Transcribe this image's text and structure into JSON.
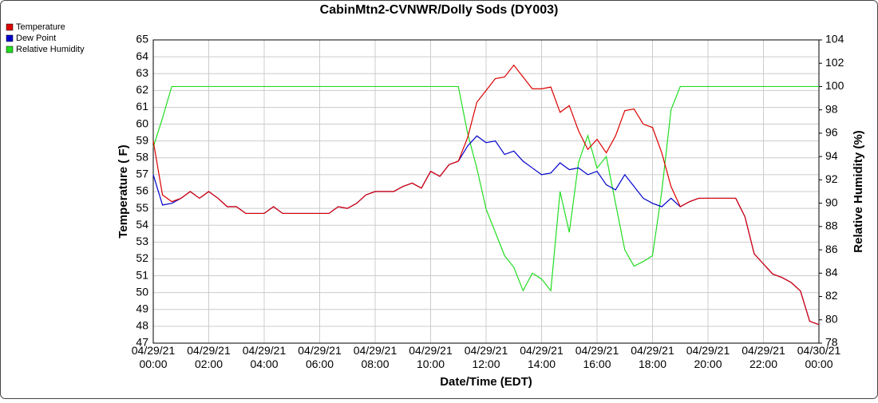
{
  "chart_data": {
    "type": "line",
    "title": "CabinMtn2-CVNWR/Dolly Sods (DY003)",
    "x_label": "Date/Time (EDT)",
    "y_label": "Temperature ( F)",
    "y2_label": "Relative Humidity (%)",
    "x": [
      "04/29/21 00:00",
      "04/29/21 00:20",
      "04/29/21 00:40",
      "04/29/21 01:00",
      "04/29/21 01:20",
      "04/29/21 01:40",
      "04/29/21 02:00",
      "04/29/21 02:20",
      "04/29/21 02:40",
      "04/29/21 03:00",
      "04/29/21 03:20",
      "04/29/21 03:40",
      "04/29/21 04:00",
      "04/29/21 04:20",
      "04/29/21 04:40",
      "04/29/21 05:00",
      "04/29/21 05:20",
      "04/29/21 05:40",
      "04/29/21 06:00",
      "04/29/21 06:20",
      "04/29/21 06:40",
      "04/29/21 07:00",
      "04/29/21 07:20",
      "04/29/21 07:40",
      "04/29/21 08:00",
      "04/29/21 08:20",
      "04/29/21 08:40",
      "04/29/21 09:00",
      "04/29/21 09:20",
      "04/29/21 09:40",
      "04/29/21 10:00",
      "04/29/21 10:20",
      "04/29/21 10:40",
      "04/29/21 11:00",
      "04/29/21 11:20",
      "04/29/21 11:40",
      "04/29/21 12:00",
      "04/29/21 12:20",
      "04/29/21 12:40",
      "04/29/21 13:00",
      "04/29/21 13:20",
      "04/29/21 13:40",
      "04/29/21 14:00",
      "04/29/21 14:20",
      "04/29/21 14:40",
      "04/29/21 15:00",
      "04/29/21 15:20",
      "04/29/21 15:40",
      "04/29/21 16:00",
      "04/29/21 16:20",
      "04/29/21 16:40",
      "04/29/21 17:00",
      "04/29/21 17:20",
      "04/29/21 17:40",
      "04/29/21 18:00",
      "04/29/21 18:20",
      "04/29/21 18:40",
      "04/29/21 19:00",
      "04/29/21 19:20",
      "04/29/21 19:40",
      "04/29/21 20:00",
      "04/29/21 20:20",
      "04/29/21 20:40",
      "04/29/21 21:00",
      "04/29/21 21:20",
      "04/29/21 21:40",
      "04/29/21 22:00",
      "04/29/21 22:20",
      "04/29/21 22:40",
      "04/29/21 23:00",
      "04/29/21 23:20",
      "04/29/21 23:40",
      "04/30/21 00:00"
    ],
    "series": [
      {
        "name": "Temperature",
        "color": "#dd0000",
        "values": [
          59.0,
          55.8,
          55.4,
          55.6,
          56.0,
          55.6,
          56.0,
          55.6,
          55.1,
          55.1,
          54.7,
          54.7,
          54.7,
          55.1,
          54.7,
          54.7,
          54.7,
          54.7,
          54.7,
          54.7,
          55.1,
          55.0,
          55.3,
          55.8,
          56.0,
          56.0,
          56.0,
          56.3,
          56.5,
          56.2,
          57.2,
          56.9,
          57.6,
          57.8,
          59.2,
          61.3,
          62.0,
          62.7,
          62.8,
          63.5,
          62.8,
          62.1,
          62.1,
          62.2,
          60.7,
          61.1,
          59.6,
          58.5,
          59.1,
          58.3,
          59.3,
          60.8,
          60.9,
          60.0,
          59.8,
          58.3,
          56.3,
          55.1,
          55.4,
          55.6,
          55.6,
          55.6,
          55.6,
          55.6,
          54.5,
          52.3,
          51.7,
          51.1,
          50.9,
          50.6,
          50.1,
          48.3,
          48.1
        ]
      },
      {
        "name": "Dew Point",
        "color": "#0000cc",
        "values": [
          57.0,
          55.2,
          55.3,
          55.6,
          56.0,
          55.6,
          56.0,
          55.6,
          55.1,
          55.1,
          54.7,
          54.7,
          54.7,
          55.1,
          54.7,
          54.7,
          54.7,
          54.7,
          54.7,
          54.7,
          55.1,
          55.0,
          55.3,
          55.8,
          56.0,
          56.0,
          56.0,
          56.3,
          56.5,
          56.2,
          57.2,
          56.9,
          57.6,
          57.8,
          58.7,
          59.3,
          58.9,
          59.0,
          58.2,
          58.4,
          57.8,
          57.4,
          57.0,
          57.1,
          57.7,
          57.3,
          57.4,
          57.0,
          57.2,
          56.4,
          56.1,
          57.0,
          56.3,
          55.6,
          55.3,
          55.1,
          55.6,
          55.1,
          55.4,
          55.6,
          55.6,
          55.6,
          55.6,
          55.6,
          54.5,
          52.3,
          51.7,
          51.1,
          50.9,
          50.6,
          50.1,
          48.3,
          48.1
        ]
      },
      {
        "name": "Relative Humidity",
        "color": "#22dd22",
        "axis": "y2",
        "values": [
          94.8,
          97.3,
          100,
          100,
          100,
          100,
          100,
          100,
          100,
          100,
          100,
          100,
          100,
          100,
          100,
          100,
          100,
          100,
          100,
          100,
          100,
          100,
          100,
          100,
          100,
          100,
          100,
          100,
          100,
          100,
          100,
          100,
          100,
          100,
          96,
          93,
          89.5,
          87.5,
          85.5,
          84.5,
          82.5,
          84.0,
          83.5,
          82.5,
          91,
          87.5,
          93.5,
          95.8,
          93,
          94,
          90,
          86,
          84.6,
          85.0,
          85.5,
          91,
          98,
          100,
          100,
          100,
          100,
          100,
          100,
          100,
          100,
          100,
          100,
          100,
          100,
          100,
          100,
          100,
          100
        ]
      }
    ],
    "xlim": [
      "04/29/21 00:00",
      "04/30/21 00:00"
    ],
    "xticks": [
      "04/29/21 00:00",
      "04/29/21 02:00",
      "04/29/21 04:00",
      "04/29/21 06:00",
      "04/29/21 08:00",
      "04/29/21 10:00",
      "04/29/21 12:00",
      "04/29/21 14:00",
      "04/29/21 16:00",
      "04/29/21 18:00",
      "04/29/21 20:00",
      "04/29/21 22:00",
      "04/30/21 00:00"
    ],
    "ylim": [
      47,
      65
    ],
    "yticks": [
      47,
      48,
      49,
      50,
      51,
      52,
      53,
      54,
      55,
      56,
      57,
      58,
      59,
      60,
      61,
      62,
      63,
      64,
      65
    ],
    "y2lim": [
      78,
      104
    ],
    "y2ticks": [
      78,
      80,
      82,
      84,
      86,
      88,
      90,
      92,
      94,
      96,
      98,
      100,
      102,
      104
    ],
    "grid": true,
    "legend": "top-left"
  }
}
